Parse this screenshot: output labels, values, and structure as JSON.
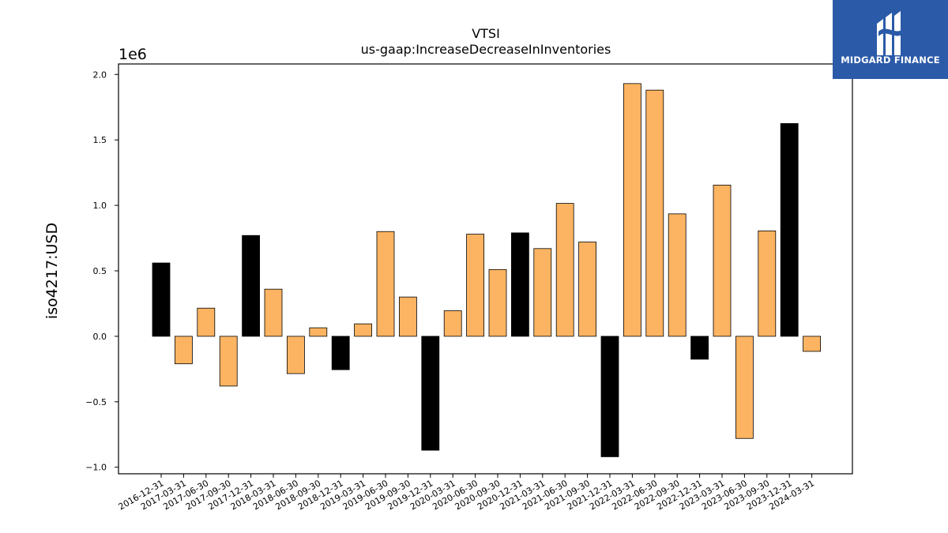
{
  "chart_data": {
    "type": "bar",
    "title": "VTSI",
    "subtitle": "us-gaap:IncreaseDecreaseInInventories",
    "xlabel": "",
    "ylabel": "iso4217:USD",
    "y_offset_label": "1e6",
    "ylim": [
      -1.05,
      2.08
    ],
    "yticks": [
      -1.0,
      -0.5,
      0.0,
      0.5,
      1.0,
      1.5,
      2.0
    ],
    "ytick_labels": [
      "−1.0",
      "−0.5",
      "0.0",
      "0.5",
      "1.0",
      "1.5",
      "2.0"
    ],
    "categories": [
      "2016-12-31",
      "2017-03-31",
      "2017-06-30",
      "2017-09-30",
      "2017-12-31",
      "2018-03-31",
      "2018-06-30",
      "2018-09-30",
      "2018-12-31",
      "2019-03-31",
      "2019-06-30",
      "2019-09-30",
      "2019-12-31",
      "2020-03-31",
      "2020-06-30",
      "2020-09-30",
      "2020-12-31",
      "2021-03-31",
      "2021-06-30",
      "2021-09-30",
      "2021-12-31",
      "2022-03-31",
      "2022-06-30",
      "2022-09-30",
      "2022-12-31",
      "2023-03-31",
      "2023-06-30",
      "2023-09-30",
      "2023-12-31",
      "2024-03-31"
    ],
    "values": [
      0.56,
      -0.21,
      0.215,
      -0.38,
      0.77,
      0.36,
      -0.285,
      0.065,
      -0.255,
      0.095,
      0.8,
      0.3,
      -0.87,
      0.195,
      0.78,
      0.51,
      0.79,
      0.67,
      1.015,
      0.72,
      -0.92,
      1.93,
      1.88,
      0.935,
      -0.175,
      1.155,
      -0.78,
      0.805,
      1.625,
      -0.115
    ],
    "bar_colors": [
      "#000000",
      "#fdb462",
      "#fdb462",
      "#fdb462",
      "#000000",
      "#fdb462",
      "#fdb462",
      "#fdb462",
      "#000000",
      "#fdb462",
      "#fdb462",
      "#fdb462",
      "#000000",
      "#fdb462",
      "#fdb462",
      "#fdb462",
      "#000000",
      "#fdb462",
      "#fdb462",
      "#fdb462",
      "#000000",
      "#fdb462",
      "#fdb462",
      "#fdb462",
      "#000000",
      "#fdb462",
      "#fdb462",
      "#fdb462",
      "#000000",
      "#fdb462"
    ],
    "grid": false,
    "legend": "none"
  },
  "logo": {
    "text": "MIDGARD FINANCE",
    "background": "#2b5aa8",
    "icon": "midgard-logo-mark"
  }
}
